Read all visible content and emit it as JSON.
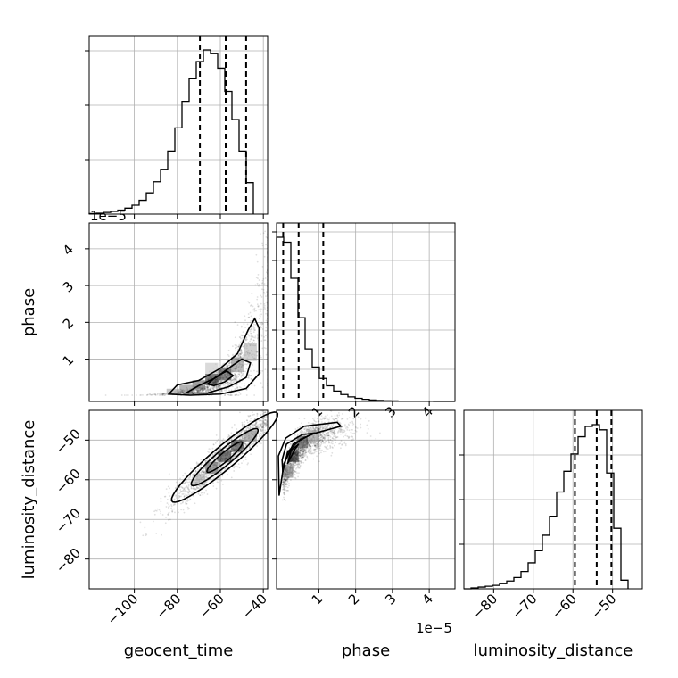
{
  "chart_data": {
    "type": "corner",
    "parameters": [
      "geocent_time",
      "phase",
      "luminosity_distance"
    ],
    "offset_labels": {
      "geocent_time_y": "1e−5",
      "phase_x": "1e−5"
    },
    "ranges": {
      "geocent_time": [
        -121,
        -38
      ],
      "phase": [
        -0.15,
        4.7
      ],
      "luminosity_distance": [
        -87.5,
        -42.5
      ]
    },
    "ticks": {
      "geocent_time": [
        {
          "v": -100,
          "label": "−100"
        },
        {
          "v": -80,
          "label": "−80"
        },
        {
          "v": -60,
          "label": "−60"
        },
        {
          "v": -40,
          "label": "−40"
        }
      ],
      "phase": [
        {
          "v": 1,
          "label": "1"
        },
        {
          "v": 2,
          "label": "2"
        },
        {
          "v": 3,
          "label": "3"
        },
        {
          "v": 4,
          "label": "4"
        }
      ],
      "luminosity_distance": [
        {
          "v": -80,
          "label": "−80"
        },
        {
          "v": -70,
          "label": "−70"
        },
        {
          "v": -60,
          "label": "−60"
        },
        {
          "v": -50,
          "label": "−50"
        }
      ]
    },
    "histograms": {
      "geocent_time": {
        "edges_start": -121,
        "bin_width": 3.32,
        "counts": [
          0.3,
          0.5,
          1,
          1.6,
          2.4,
          3.6,
          5.4,
          8.3,
          12.8,
          19.5,
          27,
          38,
          52,
          68,
          82,
          92,
          99,
          97,
          88,
          74,
          57,
          38,
          19
        ],
        "quantiles": [
          -69.5,
          -57.5,
          -48
        ]
      },
      "phase": {
        "edges_start": -0.15,
        "bin_width": 0.194,
        "counts": [
          100,
          97,
          75,
          51,
          32,
          21,
          14,
          9.5,
          6.3,
          4.2,
          2.8,
          1.9,
          1.3,
          0.9,
          0.6,
          0.4,
          0.3,
          0.2,
          0.15,
          0.1,
          0.08,
          0.05,
          0.04,
          0.03,
          0.02
        ],
        "quantiles": [
          0.03,
          0.45,
          1.12
        ]
      },
      "luminosity_distance": {
        "edges_start": -87.5,
        "bin_width": 1.8,
        "counts": [
          0,
          0.5,
          1,
          1.5,
          2,
          3,
          4.5,
          6.5,
          10,
          15,
          22,
          31,
          42,
          56,
          68,
          78,
          88,
          94,
          95,
          92,
          67,
          35,
          5
        ],
        "quantiles": [
          -59.5,
          -54,
          -50.3
        ]
      }
    },
    "joint": {
      "geocent_time__phase": {
        "ridge": "phase ≈ 6.5e-7·exp(0.075·(geocent_time+80)) · 1e5 scale",
        "density_cells": [
          {
            "x": -64,
            "y": 0.45,
            "w": 6,
            "h": 0.3,
            "shade": "#111111"
          },
          {
            "x": -58,
            "y": 0.6,
            "w": 6,
            "h": 0.35,
            "shade": "#333333"
          },
          {
            "x": -70,
            "y": 0.3,
            "w": 6,
            "h": 0.25,
            "shade": "#555555"
          },
          {
            "x": -76,
            "y": 0.2,
            "w": 6,
            "h": 0.2,
            "shade": "#777777"
          },
          {
            "x": -52,
            "y": 0.85,
            "w": 6,
            "h": 0.4,
            "shade": "#888888"
          },
          {
            "x": -82,
            "y": 0.12,
            "w": 6,
            "h": 0.15,
            "shade": "#999999"
          },
          {
            "x": -46,
            "y": 1.2,
            "w": 6,
            "h": 0.5,
            "shade": "#aaaaaa"
          },
          {
            "x": -64,
            "y": 0.75,
            "w": 6,
            "h": 0.3,
            "shade": "#bbbbbb"
          }
        ]
      },
      "geocent_time__luminosity_distance": {
        "ridge": "linear, luminosity_distance ≈ 0.47·geocent_time − 27"
      },
      "phase__luminosity_distance": {
        "ridge": "saturating, luminosity_distance ≈ −47 − 15·exp(−phase/0.45)"
      }
    }
  }
}
